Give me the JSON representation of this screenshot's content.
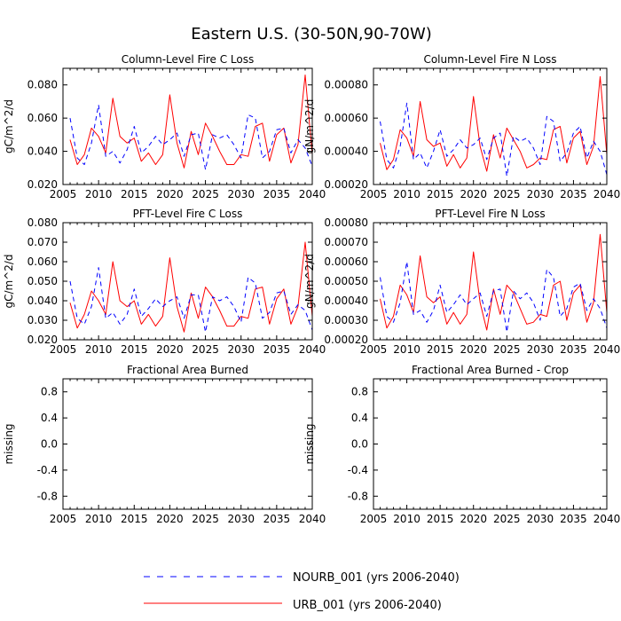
{
  "figure_title": "Eastern U.S. (30-50N,90-70W)",
  "colors": {
    "urb": "#ff0000",
    "nourb": "#0000ff",
    "axis": "#000000"
  },
  "legend": {
    "nourb_label": "NOURB_001 (yrs 2006-2040)",
    "urb_label": "URB_001 (yrs 2006-2040)"
  },
  "chart_data": [
    {
      "type": "line",
      "title": "Column-Level Fire C Loss",
      "xlabel": "",
      "ylabel": "gC/m^2/d",
      "xlim": [
        2005,
        2040
      ],
      "ylim": [
        0.02,
        0.09
      ],
      "xticks": [
        2005,
        2010,
        2015,
        2020,
        2025,
        2030,
        2035,
        2040
      ],
      "yticks": [
        0.02,
        0.04,
        0.06,
        0.08
      ],
      "ytick_labels": [
        "0.020",
        "0.040",
        "0.060",
        "0.080"
      ],
      "x": [
        2006,
        2007,
        2008,
        2009,
        2010,
        2011,
        2012,
        2013,
        2014,
        2015,
        2016,
        2017,
        2018,
        2019,
        2020,
        2021,
        2022,
        2023,
        2024,
        2025,
        2026,
        2027,
        2028,
        2029,
        2030,
        2031,
        2032,
        2033,
        2034,
        2035,
        2036,
        2037,
        2038,
        2039,
        2040
      ],
      "series": [
        {
          "name": "URB_001",
          "style": "solid",
          "values": [
            0.047,
            0.032,
            0.038,
            0.054,
            0.049,
            0.039,
            0.072,
            0.049,
            0.045,
            0.048,
            0.034,
            0.039,
            0.032,
            0.038,
            0.074,
            0.045,
            0.03,
            0.052,
            0.038,
            0.057,
            0.049,
            0.04,
            0.032,
            0.032,
            0.038,
            0.037,
            0.055,
            0.057,
            0.034,
            0.05,
            0.054,
            0.033,
            0.044,
            0.086,
            0.038
          ]
        },
        {
          "name": "NOURB_001",
          "style": "dashed",
          "values": [
            0.06,
            0.036,
            0.032,
            0.045,
            0.068,
            0.037,
            0.04,
            0.033,
            0.041,
            0.055,
            0.039,
            0.043,
            0.049,
            0.044,
            0.047,
            0.051,
            0.037,
            0.05,
            0.051,
            0.029,
            0.05,
            0.048,
            0.05,
            0.044,
            0.036,
            0.062,
            0.06,
            0.036,
            0.04,
            0.053,
            0.054,
            0.039,
            0.047,
            0.042,
            0.031
          ]
        }
      ]
    },
    {
      "type": "line",
      "title": "Column-Level Fire N Loss",
      "xlabel": "",
      "ylabel": "gN/m^2/d",
      "xlim": [
        2005,
        2040
      ],
      "ylim": [
        0.0002,
        0.0009
      ],
      "xticks": [
        2005,
        2010,
        2015,
        2020,
        2025,
        2030,
        2035,
        2040
      ],
      "yticks": [
        0.0002,
        0.0004,
        0.0006,
        0.0008
      ],
      "ytick_labels": [
        "0.00020",
        "0.00040",
        "0.00060",
        "0.00080"
      ],
      "x": [
        2006,
        2007,
        2008,
        2009,
        2010,
        2011,
        2012,
        2013,
        2014,
        2015,
        2016,
        2017,
        2018,
        2019,
        2020,
        2021,
        2022,
        2023,
        2024,
        2025,
        2026,
        2027,
        2028,
        2029,
        2030,
        2031,
        2032,
        2033,
        2034,
        2035,
        2036,
        2037,
        2038,
        2039,
        2040
      ],
      "series": [
        {
          "name": "URB_001",
          "style": "solid",
          "values": [
            0.00045,
            0.00029,
            0.00035,
            0.00053,
            0.00048,
            0.00037,
            0.0007,
            0.00047,
            0.00043,
            0.00045,
            0.00031,
            0.00038,
            0.0003,
            0.00036,
            0.00073,
            0.00043,
            0.00028,
            0.0005,
            0.00036,
            0.00054,
            0.00047,
            0.0004,
            0.0003,
            0.00032,
            0.00036,
            0.00035,
            0.00053,
            0.00055,
            0.00033,
            0.00048,
            0.00052,
            0.00032,
            0.00043,
            0.00085,
            0.00038
          ]
        },
        {
          "name": "NOURB_001",
          "style": "dashed",
          "values": [
            0.00058,
            0.00035,
            0.0003,
            0.00043,
            0.00069,
            0.00035,
            0.00039,
            0.0003,
            0.0004,
            0.00053,
            0.00037,
            0.00041,
            0.00047,
            0.00042,
            0.00044,
            0.00048,
            0.00035,
            0.00048,
            0.00051,
            0.00025,
            0.00049,
            0.00046,
            0.00048,
            0.00042,
            0.00032,
            0.00061,
            0.00058,
            0.00034,
            0.00039,
            0.00051,
            0.00055,
            0.00036,
            0.00046,
            0.0004,
            0.00026
          ]
        }
      ]
    },
    {
      "type": "line",
      "title": "PFT-Level Fire C Loss",
      "xlabel": "",
      "ylabel": "gC/m^2/d",
      "xlim": [
        2005,
        2040
      ],
      "ylim": [
        0.02,
        0.08
      ],
      "xticks": [
        2005,
        2010,
        2015,
        2020,
        2025,
        2030,
        2035,
        2040
      ],
      "yticks": [
        0.02,
        0.03,
        0.04,
        0.05,
        0.06,
        0.07,
        0.08
      ],
      "ytick_labels": [
        "0.020",
        "0.030",
        "0.040",
        "0.050",
        "0.060",
        "0.070",
        "0.080"
      ],
      "x": [
        2006,
        2007,
        2008,
        2009,
        2010,
        2011,
        2012,
        2013,
        2014,
        2015,
        2016,
        2017,
        2018,
        2019,
        2020,
        2021,
        2022,
        2023,
        2024,
        2025,
        2026,
        2027,
        2028,
        2029,
        2030,
        2031,
        2032,
        2033,
        2034,
        2035,
        2036,
        2037,
        2038,
        2039,
        2040
      ],
      "series": [
        {
          "name": "URB_001",
          "style": "solid",
          "values": [
            0.039,
            0.026,
            0.033,
            0.045,
            0.04,
            0.033,
            0.06,
            0.04,
            0.037,
            0.04,
            0.028,
            0.033,
            0.027,
            0.032,
            0.062,
            0.037,
            0.024,
            0.044,
            0.031,
            0.047,
            0.042,
            0.035,
            0.027,
            0.027,
            0.032,
            0.031,
            0.046,
            0.047,
            0.028,
            0.041,
            0.046,
            0.028,
            0.037,
            0.07,
            0.032
          ]
        },
        {
          "name": "NOURB_001",
          "style": "dashed",
          "values": [
            0.05,
            0.031,
            0.028,
            0.037,
            0.057,
            0.031,
            0.034,
            0.028,
            0.033,
            0.046,
            0.032,
            0.036,
            0.041,
            0.037,
            0.04,
            0.042,
            0.031,
            0.043,
            0.043,
            0.024,
            0.042,
            0.04,
            0.042,
            0.037,
            0.029,
            0.052,
            0.049,
            0.031,
            0.034,
            0.044,
            0.045,
            0.033,
            0.038,
            0.035,
            0.025
          ]
        }
      ]
    },
    {
      "type": "line",
      "title": "PFT-Level Fire N Loss",
      "xlabel": "",
      "ylabel": "gN/m^2/d",
      "xlim": [
        2005,
        2040
      ],
      "ylim": [
        0.0002,
        0.0008
      ],
      "xticks": [
        2005,
        2010,
        2015,
        2020,
        2025,
        2030,
        2035,
        2040
      ],
      "yticks": [
        0.0002,
        0.0003,
        0.0004,
        0.0005,
        0.0006,
        0.0007,
        0.0008
      ],
      "ytick_labels": [
        "0.00020",
        "0.00030",
        "0.00040",
        "0.00050",
        "0.00060",
        "0.00070",
        "0.00080"
      ],
      "x": [
        2006,
        2007,
        2008,
        2009,
        2010,
        2011,
        2012,
        2013,
        2014,
        2015,
        2016,
        2017,
        2018,
        2019,
        2020,
        2021,
        2022,
        2023,
        2024,
        2025,
        2026,
        2027,
        2028,
        2029,
        2030,
        2031,
        2032,
        2033,
        2034,
        2035,
        2036,
        2037,
        2038,
        2039,
        2040
      ],
      "series": [
        {
          "name": "URB_001",
          "style": "solid",
          "values": [
            0.00041,
            0.00026,
            0.00032,
            0.00048,
            0.00043,
            0.00034,
            0.00063,
            0.00042,
            0.00039,
            0.00042,
            0.00028,
            0.00034,
            0.00028,
            0.00033,
            0.00065,
            0.00039,
            0.00025,
            0.00046,
            0.00033,
            0.00048,
            0.00044,
            0.00036,
            0.00028,
            0.00029,
            0.00033,
            0.00032,
            0.00048,
            0.0005,
            0.0003,
            0.00044,
            0.00048,
            0.00029,
            0.00039,
            0.00074,
            0.00034
          ]
        },
        {
          "name": "NOURB_001",
          "style": "dashed",
          "values": [
            0.00052,
            0.00032,
            0.00029,
            0.00039,
            0.0006,
            0.00033,
            0.00035,
            0.00029,
            0.00035,
            0.00048,
            0.00034,
            0.00038,
            0.00043,
            0.00038,
            0.00041,
            0.00044,
            0.00032,
            0.00045,
            0.00046,
            0.00024,
            0.00045,
            0.00041,
            0.00044,
            0.00039,
            0.0003,
            0.00056,
            0.00052,
            0.00032,
            0.00036,
            0.00047,
            0.00049,
            0.00035,
            0.00041,
            0.00036,
            0.00026
          ]
        }
      ]
    },
    {
      "type": "line",
      "title": "Fractional Area Burned",
      "xlabel": "",
      "ylabel": "missing",
      "xlim": [
        2005,
        2040
      ],
      "ylim": [
        -1.0,
        1.0
      ],
      "xticks": [
        2005,
        2010,
        2015,
        2020,
        2025,
        2030,
        2035,
        2040
      ],
      "yticks": [
        -0.8,
        -0.4,
        0.0,
        0.4,
        0.8
      ],
      "ytick_labels": [
        "-0.8",
        "-0.4",
        "0.0",
        "0.4",
        "0.8"
      ],
      "x": [],
      "series": []
    },
    {
      "type": "line",
      "title": "Fractional Area Burned - Crop",
      "xlabel": "",
      "ylabel": "missing",
      "xlim": [
        2005,
        2040
      ],
      "ylim": [
        -1.0,
        1.0
      ],
      "xticks": [
        2005,
        2010,
        2015,
        2020,
        2025,
        2030,
        2035,
        2040
      ],
      "yticks": [
        -0.8,
        -0.4,
        0.0,
        0.4,
        0.8
      ],
      "ytick_labels": [
        "-0.8",
        "-0.4",
        "0.0",
        "0.4",
        "0.8"
      ],
      "x": [],
      "series": []
    }
  ]
}
